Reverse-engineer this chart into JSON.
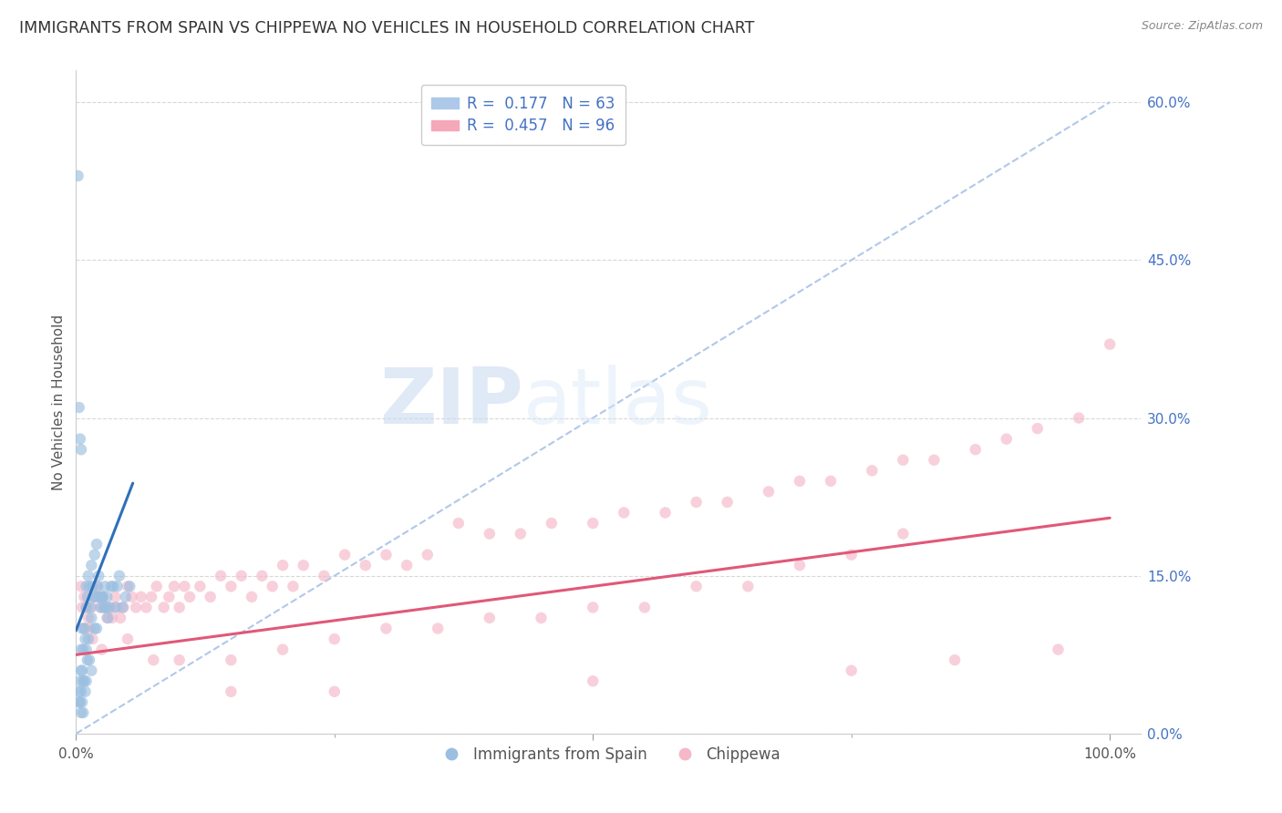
{
  "title": "IMMIGRANTS FROM SPAIN VS CHIPPEWA NO VEHICLES IN HOUSEHOLD CORRELATION CHART",
  "source": "Source: ZipAtlas.com",
  "ylabel": "No Vehicles in Household",
  "right_ytick_labels": [
    "0.0%",
    "15.0%",
    "30.0%",
    "45.0%",
    "60.0%"
  ],
  "right_ytick_values": [
    0.0,
    0.15,
    0.3,
    0.45,
    0.6
  ],
  "xtick_labels": [
    "0.0%",
    "100.0%"
  ],
  "xlim": [
    0.0,
    1.03
  ],
  "ylim": [
    0.0,
    0.63
  ],
  "legend_entries": [
    {
      "label_r": "R =  0.177",
      "label_n": "N = 63",
      "color": "#adc8e8"
    },
    {
      "label_r": "R =  0.457",
      "label_n": "N = 96",
      "color": "#f5a8b8"
    }
  ],
  "series_blue": {
    "color": "#9bbfe0",
    "R": 0.177,
    "N": 63,
    "x": [
      0.002,
      0.003,
      0.003,
      0.004,
      0.004,
      0.005,
      0.005,
      0.005,
      0.005,
      0.006,
      0.006,
      0.006,
      0.007,
      0.007,
      0.007,
      0.008,
      0.008,
      0.009,
      0.009,
      0.01,
      0.01,
      0.01,
      0.01,
      0.011,
      0.011,
      0.012,
      0.012,
      0.013,
      0.013,
      0.014,
      0.015,
      0.015,
      0.015,
      0.016,
      0.017,
      0.018,
      0.018,
      0.019,
      0.02,
      0.02,
      0.021,
      0.022,
      0.023,
      0.024,
      0.025,
      0.026,
      0.027,
      0.028,
      0.029,
      0.03,
      0.031,
      0.032,
      0.034,
      0.036,
      0.038,
      0.04,
      0.042,
      0.045,
      0.048,
      0.052,
      0.003,
      0.004,
      0.005
    ],
    "y": [
      0.53,
      0.04,
      0.03,
      0.05,
      0.03,
      0.08,
      0.06,
      0.04,
      0.02,
      0.1,
      0.06,
      0.03,
      0.08,
      0.05,
      0.02,
      0.1,
      0.05,
      0.09,
      0.04,
      0.14,
      0.12,
      0.08,
      0.05,
      0.13,
      0.07,
      0.15,
      0.09,
      0.14,
      0.07,
      0.12,
      0.16,
      0.11,
      0.06,
      0.14,
      0.13,
      0.17,
      0.1,
      0.13,
      0.18,
      0.1,
      0.14,
      0.15,
      0.13,
      0.12,
      0.13,
      0.13,
      0.12,
      0.14,
      0.12,
      0.13,
      0.11,
      0.12,
      0.14,
      0.14,
      0.12,
      0.14,
      0.15,
      0.12,
      0.13,
      0.14,
      0.31,
      0.28,
      0.27
    ]
  },
  "series_pink": {
    "color": "#f5b8c8",
    "R": 0.457,
    "N": 96,
    "x": [
      0.005,
      0.006,
      0.008,
      0.009,
      0.01,
      0.012,
      0.013,
      0.015,
      0.016,
      0.018,
      0.02,
      0.022,
      0.024,
      0.026,
      0.028,
      0.03,
      0.033,
      0.035,
      0.038,
      0.04,
      0.043,
      0.046,
      0.05,
      0.054,
      0.058,
      0.063,
      0.068,
      0.073,
      0.078,
      0.085,
      0.09,
      0.095,
      0.1,
      0.105,
      0.11,
      0.12,
      0.13,
      0.14,
      0.15,
      0.16,
      0.17,
      0.18,
      0.19,
      0.2,
      0.21,
      0.22,
      0.24,
      0.26,
      0.28,
      0.3,
      0.32,
      0.34,
      0.37,
      0.4,
      0.43,
      0.46,
      0.5,
      0.53,
      0.57,
      0.6,
      0.63,
      0.67,
      0.7,
      0.73,
      0.77,
      0.8,
      0.83,
      0.87,
      0.9,
      0.93,
      0.97,
      1.0,
      0.025,
      0.05,
      0.075,
      0.1,
      0.15,
      0.2,
      0.25,
      0.3,
      0.35,
      0.4,
      0.45,
      0.5,
      0.55,
      0.6,
      0.65,
      0.7,
      0.75,
      0.8,
      0.15,
      0.25,
      0.5,
      0.75,
      0.85,
      0.95
    ],
    "y": [
      0.14,
      0.12,
      0.13,
      0.1,
      0.12,
      0.11,
      0.1,
      0.12,
      0.09,
      0.13,
      0.14,
      0.13,
      0.12,
      0.13,
      0.12,
      0.11,
      0.12,
      0.11,
      0.13,
      0.12,
      0.11,
      0.12,
      0.14,
      0.13,
      0.12,
      0.13,
      0.12,
      0.13,
      0.14,
      0.12,
      0.13,
      0.14,
      0.12,
      0.14,
      0.13,
      0.14,
      0.13,
      0.15,
      0.14,
      0.15,
      0.13,
      0.15,
      0.14,
      0.16,
      0.14,
      0.16,
      0.15,
      0.17,
      0.16,
      0.17,
      0.16,
      0.17,
      0.2,
      0.19,
      0.19,
      0.2,
      0.2,
      0.21,
      0.21,
      0.22,
      0.22,
      0.23,
      0.24,
      0.24,
      0.25,
      0.26,
      0.26,
      0.27,
      0.28,
      0.29,
      0.3,
      0.37,
      0.08,
      0.09,
      0.07,
      0.07,
      0.07,
      0.08,
      0.09,
      0.1,
      0.1,
      0.11,
      0.11,
      0.12,
      0.12,
      0.14,
      0.14,
      0.16,
      0.17,
      0.19,
      0.04,
      0.04,
      0.05,
      0.06,
      0.07,
      0.08
    ]
  },
  "blue_reg_line": {
    "x0": 0.0,
    "x1": 0.055,
    "y0": 0.098,
    "y1": 0.238,
    "color": "#3070b8",
    "linewidth": 2.2
  },
  "pink_reg_line": {
    "x0": 0.0,
    "x1": 1.0,
    "y0": 0.075,
    "y1": 0.205,
    "color": "#e05878",
    "linewidth": 2.2
  },
  "diag_line": {
    "x0": 0.0,
    "x1": 1.0,
    "y0": 0.0,
    "y1": 0.6,
    "color": "#b0c8e8",
    "linewidth": 1.5,
    "linestyle": "--"
  },
  "grid_color": "#d8d8d8",
  "watermark_zip": "ZIP",
  "watermark_atlas": "atlas",
  "background_color": "#ffffff",
  "title_fontsize": 12.5,
  "label_fontsize": 11,
  "tick_fontsize": 11,
  "marker_size": 9,
  "marker_alpha": 0.65
}
